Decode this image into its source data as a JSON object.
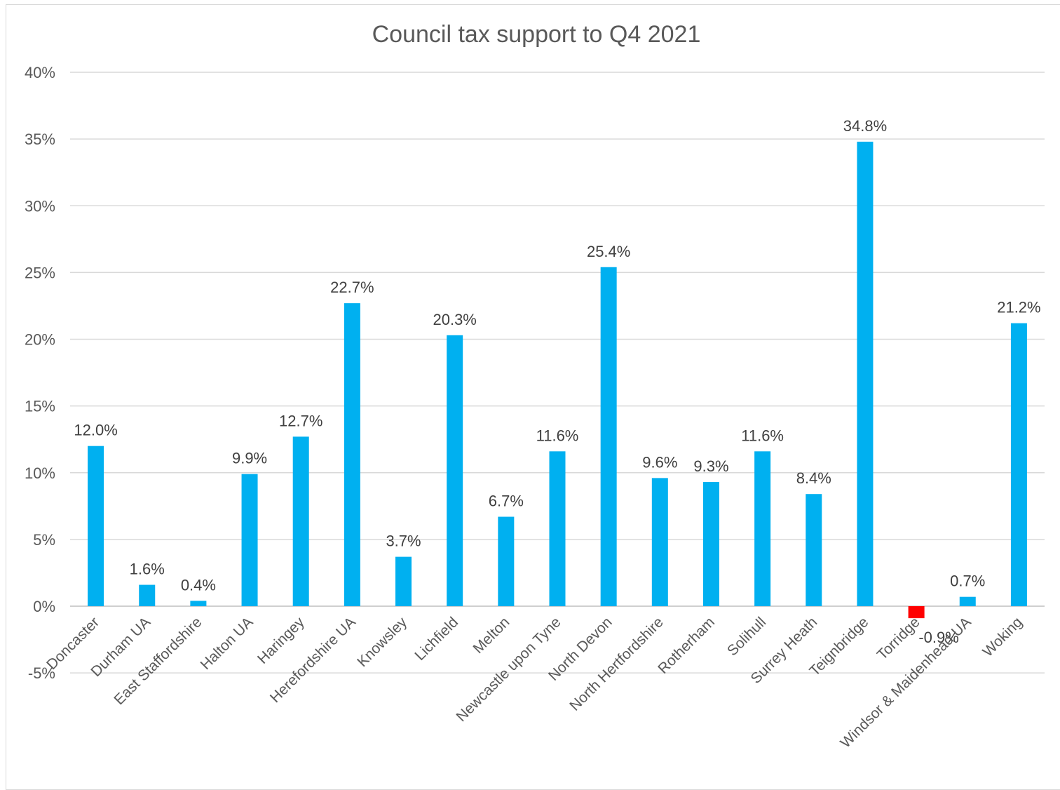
{
  "chart_data": {
    "type": "bar",
    "title": "Council tax support to Q4 2021",
    "xlabel": "",
    "ylabel": "",
    "ylim": [
      -5,
      40
    ],
    "yticks": [
      -5,
      0,
      5,
      10,
      15,
      20,
      25,
      30,
      35,
      40
    ],
    "ytick_labels": [
      "-5%",
      "0%",
      "5%",
      "10%",
      "15%",
      "20%",
      "25%",
      "30%",
      "35%",
      "40%"
    ],
    "grid": true,
    "legend": "none",
    "categories": [
      "Doncaster",
      "Durham UA",
      "East Staffordshire",
      "Halton UA",
      "Haringey",
      "Herefordshire UA",
      "Knowsley",
      "Lichfield",
      "Melton",
      "Newcastle upon Tyne",
      "North Devon",
      "North Hertfordshire",
      "Rotherham",
      "Solihull",
      "Surrey Heath",
      "Teignbridge",
      "Torridge",
      "Windsor & Maidenhead UA",
      "Woking"
    ],
    "values": [
      12.0,
      1.6,
      0.4,
      9.9,
      12.7,
      22.7,
      3.7,
      20.3,
      6.7,
      11.6,
      25.4,
      9.6,
      9.3,
      11.6,
      8.4,
      34.8,
      -0.9,
      0.7,
      21.2
    ],
    "data_labels": [
      "12.0%",
      "1.6%",
      "0.4%",
      "9.9%",
      "12.7%",
      "22.7%",
      "3.7%",
      "20.3%",
      "6.7%",
      "11.6%",
      "25.4%",
      "9.6%",
      "9.3%",
      "11.6%",
      "8.4%",
      "34.8%",
      "-0.9%",
      "0.7%",
      "21.2%"
    ],
    "colors": {
      "positive": "#00b0f0",
      "negative": "#ff0000"
    }
  }
}
